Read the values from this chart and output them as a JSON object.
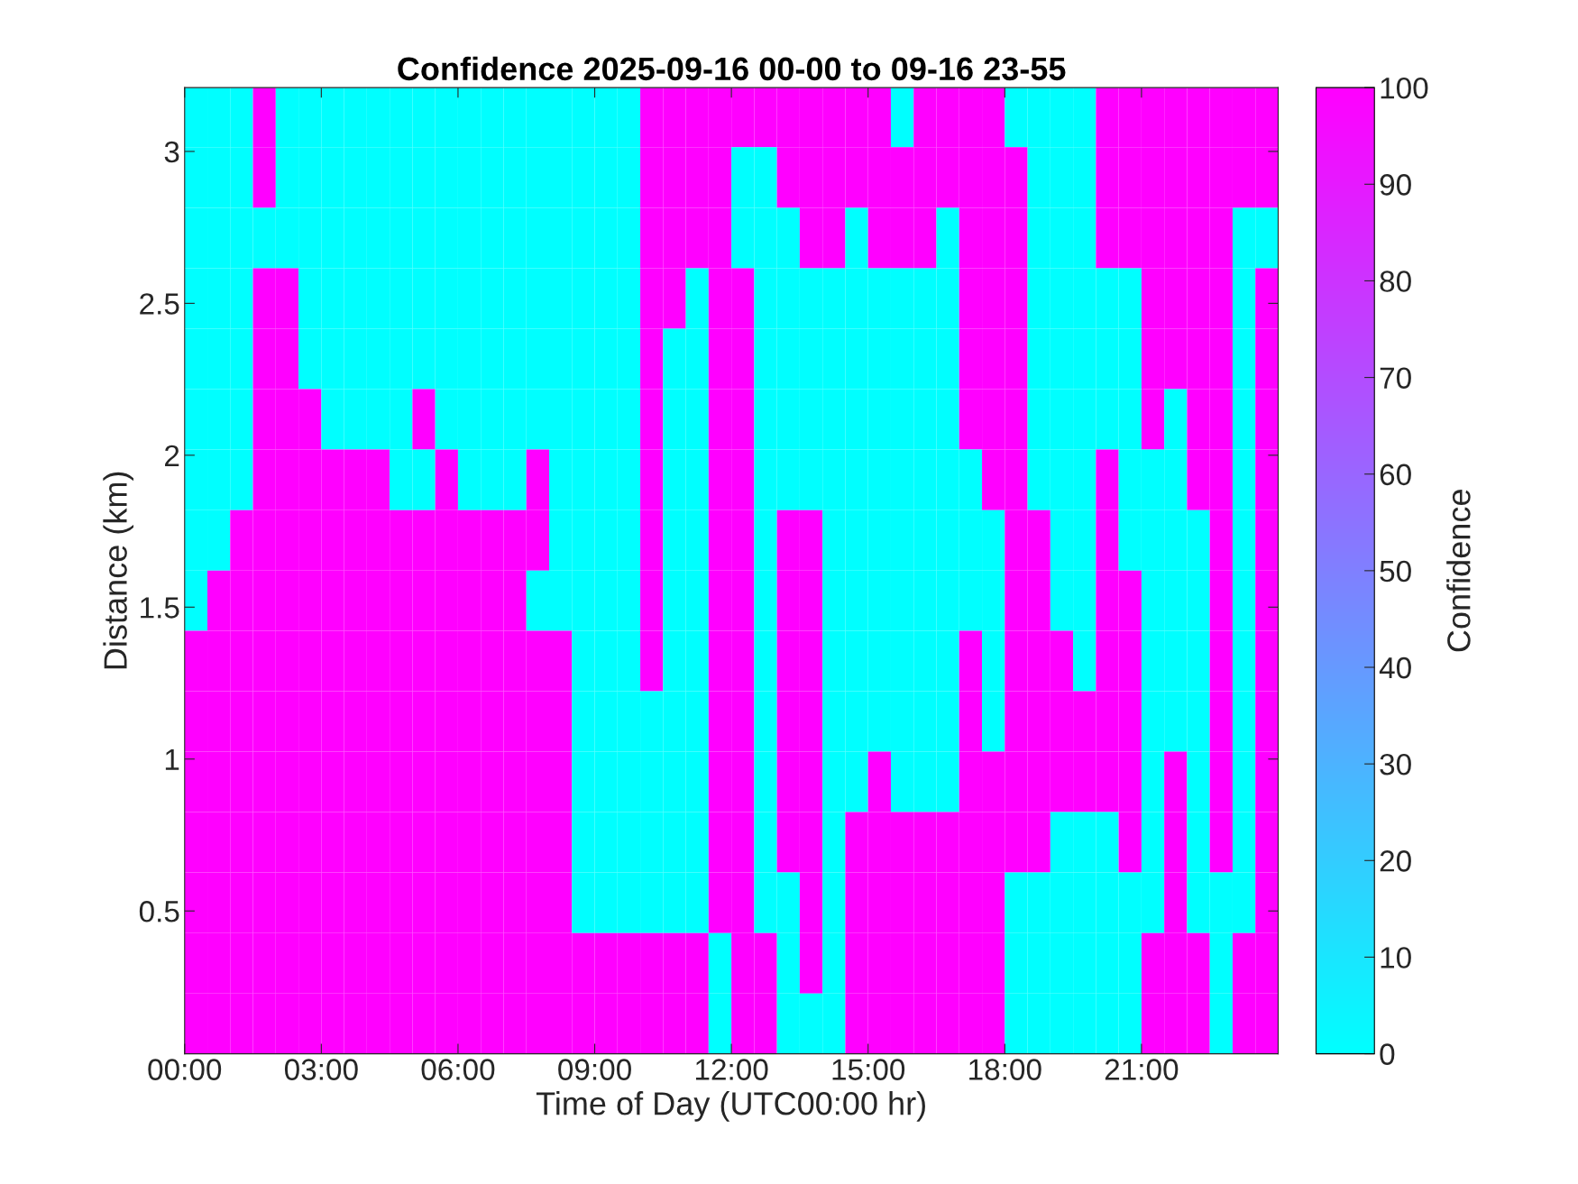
{
  "chart_data": {
    "type": "heatmap",
    "title": "Confidence 2025-09-16 00-00 to 09-16 23-55",
    "xlabel": "Time of Day (UTC00:00 hr)",
    "ylabel": "Distance (km)",
    "clabel": "Confidence",
    "colors": [
      "#00ffff",
      "#ff00ff"
    ],
    "x": [
      0.25,
      0.75,
      1.25,
      1.75,
      2.25,
      2.75,
      3.25,
      3.75,
      4.25,
      4.75,
      5.25,
      5.75,
      6.25,
      6.75,
      7.25,
      7.75,
      8.25,
      8.75,
      9.25,
      9.75,
      10.25,
      10.75,
      11.25,
      11.75,
      12.25,
      12.75,
      13.25,
      13.75,
      14.25,
      14.75,
      15.25,
      15.75,
      16.25,
      16.75,
      17.25,
      17.75,
      18.25,
      18.75,
      19.25,
      19.75,
      20.25,
      20.75,
      21.25,
      21.75,
      22.25,
      22.75,
      23.25,
      23.75
    ],
    "y": [
      3.113,
      2.914,
      2.715,
      2.516,
      2.317,
      2.118,
      1.919,
      1.72,
      1.521,
      1.323,
      1.124,
      0.925,
      0.726,
      0.527,
      0.328,
      0.129
    ],
    "cells": [
      [
        0,
        0,
        0,
        100,
        0,
        0,
        0,
        0,
        0,
        0,
        0,
        0,
        0,
        0,
        0,
        0,
        0,
        0,
        0,
        0,
        100,
        100,
        100,
        100,
        100,
        100,
        100,
        100,
        100,
        100,
        100,
        0,
        100,
        100,
        100,
        100,
        0,
        0,
        0,
        0,
        100,
        100,
        100,
        100,
        100,
        100,
        100,
        100
      ],
      [
        0,
        0,
        0,
        100,
        0,
        0,
        0,
        0,
        0,
        0,
        0,
        0,
        0,
        0,
        0,
        0,
        0,
        0,
        0,
        0,
        100,
        100,
        100,
        100,
        0,
        0,
        100,
        100,
        100,
        100,
        100,
        100,
        100,
        100,
        100,
        100,
        100,
        0,
        0,
        0,
        100,
        100,
        100,
        100,
        100,
        100,
        100,
        100
      ],
      [
        0,
        0,
        0,
        0,
        0,
        0,
        0,
        0,
        0,
        0,
        0,
        0,
        0,
        0,
        0,
        0,
        0,
        0,
        0,
        0,
        100,
        100,
        100,
        100,
        0,
        0,
        0,
        100,
        100,
        0,
        100,
        100,
        100,
        0,
        100,
        100,
        100,
        0,
        0,
        0,
        100,
        100,
        100,
        100,
        100,
        100,
        0,
        0
      ],
      [
        0,
        0,
        0,
        100,
        100,
        0,
        0,
        0,
        0,
        0,
        0,
        0,
        0,
        0,
        0,
        0,
        0,
        0,
        0,
        0,
        100,
        100,
        0,
        100,
        100,
        0,
        0,
        0,
        0,
        0,
        0,
        0,
        0,
        0,
        100,
        100,
        100,
        0,
        0,
        0,
        0,
        0,
        100,
        100,
        100,
        100,
        0,
        100
      ],
      [
        0,
        0,
        0,
        100,
        100,
        0,
        0,
        0,
        0,
        0,
        0,
        0,
        0,
        0,
        0,
        0,
        0,
        0,
        0,
        0,
        100,
        0,
        0,
        100,
        100,
        0,
        0,
        0,
        0,
        0,
        0,
        0,
        0,
        0,
        100,
        100,
        100,
        0,
        0,
        0,
        0,
        0,
        100,
        100,
        100,
        100,
        0,
        100
      ],
      [
        0,
        0,
        0,
        100,
        100,
        100,
        0,
        0,
        0,
        0,
        100,
        0,
        0,
        0,
        0,
        0,
        0,
        0,
        0,
        0,
        100,
        0,
        0,
        100,
        100,
        0,
        0,
        0,
        0,
        0,
        0,
        0,
        0,
        0,
        100,
        100,
        100,
        0,
        0,
        0,
        0,
        0,
        100,
        0,
        100,
        100,
        0,
        100
      ],
      [
        0,
        0,
        0,
        100,
        100,
        100,
        100,
        100,
        100,
        0,
        0,
        100,
        0,
        0,
        0,
        100,
        0,
        0,
        0,
        0,
        100,
        0,
        0,
        100,
        100,
        0,
        0,
        0,
        0,
        0,
        0,
        0,
        0,
        0,
        0,
        100,
        100,
        0,
        0,
        0,
        100,
        0,
        0,
        0,
        100,
        100,
        0,
        100
      ],
      [
        0,
        0,
        100,
        100,
        100,
        100,
        100,
        100,
        100,
        100,
        100,
        100,
        100,
        100,
        100,
        100,
        0,
        0,
        0,
        0,
        100,
        0,
        0,
        100,
        100,
        0,
        100,
        100,
        0,
        0,
        0,
        0,
        0,
        0,
        0,
        0,
        100,
        100,
        0,
        0,
        100,
        0,
        0,
        0,
        0,
        100,
        0,
        100
      ],
      [
        0,
        100,
        100,
        100,
        100,
        100,
        100,
        100,
        100,
        100,
        100,
        100,
        100,
        100,
        100,
        0,
        0,
        0,
        0,
        0,
        100,
        0,
        0,
        100,
        100,
        0,
        100,
        100,
        0,
        0,
        0,
        0,
        0,
        0,
        0,
        0,
        100,
        100,
        0,
        0,
        100,
        100,
        0,
        0,
        0,
        100,
        0,
        100
      ],
      [
        100,
        100,
        100,
        100,
        100,
        100,
        100,
        100,
        100,
        100,
        100,
        100,
        100,
        100,
        100,
        100,
        100,
        0,
        0,
        0,
        100,
        0,
        0,
        100,
        100,
        0,
        100,
        100,
        0,
        0,
        0,
        0,
        0,
        0,
        100,
        0,
        100,
        100,
        100,
        0,
        100,
        100,
        0,
        0,
        0,
        100,
        0,
        100
      ],
      [
        100,
        100,
        100,
        100,
        100,
        100,
        100,
        100,
        100,
        100,
        100,
        100,
        100,
        100,
        100,
        100,
        100,
        0,
        0,
        0,
        0,
        0,
        0,
        100,
        100,
        0,
        100,
        100,
        0,
        0,
        0,
        0,
        0,
        0,
        100,
        0,
        100,
        100,
        100,
        100,
        100,
        100,
        0,
        0,
        0,
        100,
        0,
        100
      ],
      [
        100,
        100,
        100,
        100,
        100,
        100,
        100,
        100,
        100,
        100,
        100,
        100,
        100,
        100,
        100,
        100,
        100,
        0,
        0,
        0,
        0,
        0,
        0,
        100,
        100,
        0,
        100,
        100,
        0,
        0,
        100,
        0,
        0,
        0,
        100,
        100,
        100,
        100,
        100,
        100,
        100,
        100,
        0,
        100,
        0,
        100,
        0,
        100
      ],
      [
        100,
        100,
        100,
        100,
        100,
        100,
        100,
        100,
        100,
        100,
        100,
        100,
        100,
        100,
        100,
        100,
        100,
        0,
        0,
        0,
        0,
        0,
        0,
        100,
        100,
        0,
        100,
        100,
        0,
        100,
        100,
        100,
        100,
        100,
        100,
        100,
        100,
        100,
        0,
        0,
        0,
        100,
        0,
        100,
        0,
        100,
        0,
        100
      ],
      [
        100,
        100,
        100,
        100,
        100,
        100,
        100,
        100,
        100,
        100,
        100,
        100,
        100,
        100,
        100,
        100,
        100,
        0,
        0,
        0,
        0,
        0,
        0,
        100,
        100,
        0,
        0,
        100,
        0,
        100,
        100,
        100,
        100,
        100,
        100,
        100,
        0,
        0,
        0,
        0,
        0,
        0,
        0,
        100,
        0,
        0,
        0,
        100
      ],
      [
        100,
        100,
        100,
        100,
        100,
        100,
        100,
        100,
        100,
        100,
        100,
        100,
        100,
        100,
        100,
        100,
        100,
        100,
        100,
        100,
        100,
        100,
        100,
        0,
        100,
        100,
        0,
        100,
        0,
        100,
        100,
        100,
        100,
        100,
        100,
        100,
        0,
        0,
        0,
        0,
        0,
        0,
        100,
        100,
        100,
        0,
        100,
        100
      ],
      [
        100,
        100,
        100,
        100,
        100,
        100,
        100,
        100,
        100,
        100,
        100,
        100,
        100,
        100,
        100,
        100,
        100,
        100,
        100,
        100,
        100,
        100,
        100,
        0,
        100,
        100,
        0,
        0,
        0,
        100,
        100,
        100,
        100,
        100,
        100,
        100,
        0,
        0,
        0,
        0,
        0,
        0,
        100,
        100,
        100,
        0,
        100,
        100
      ]
    ],
    "xlim": [
      0,
      24
    ],
    "ylim": [
      0.03,
      3.21
    ],
    "xticks": [
      {
        "value": 0,
        "label": "00:00"
      },
      {
        "value": 3,
        "label": "03:00"
      },
      {
        "value": 6,
        "label": "06:00"
      },
      {
        "value": 9,
        "label": "09:00"
      },
      {
        "value": 12,
        "label": "12:00"
      },
      {
        "value": 15,
        "label": "15:00"
      },
      {
        "value": 18,
        "label": "18:00"
      },
      {
        "value": 21,
        "label": "21:00"
      }
    ],
    "yticks": [
      0.5,
      1,
      1.5,
      2,
      2.5,
      3
    ],
    "clim": [
      0,
      100
    ],
    "cticks": [
      0,
      10,
      20,
      30,
      40,
      50,
      60,
      70,
      80,
      90,
      100
    ],
    "grid": false
  }
}
